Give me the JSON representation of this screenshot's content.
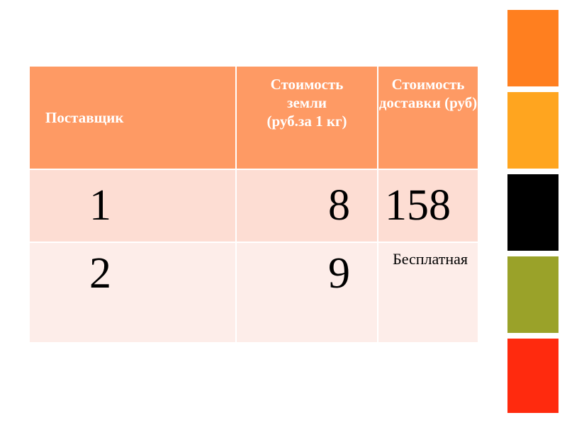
{
  "table": {
    "headers": [
      "Поставщик",
      "Стоимость земли (руб.за 1 кг)",
      "Стоимость доставки (руб)"
    ],
    "header_lines": {
      "col2": [
        "Стоимость",
        "земли",
        "(руб.за 1 кг)"
      ],
      "col3": [
        "Стоимость",
        "доставки (руб)"
      ]
    },
    "rows": [
      [
        "1",
        "8",
        "158"
      ],
      [
        "2",
        "9",
        "Бесплатная"
      ]
    ]
  },
  "colors": {
    "header": "#FE9A64",
    "row1": "#FDDDD3",
    "row2": "#FDEDE9",
    "blocks": [
      "#FF7F1F",
      "#FFA51F",
      "#000000",
      "#9AA229",
      "#FF2A0E"
    ]
  }
}
